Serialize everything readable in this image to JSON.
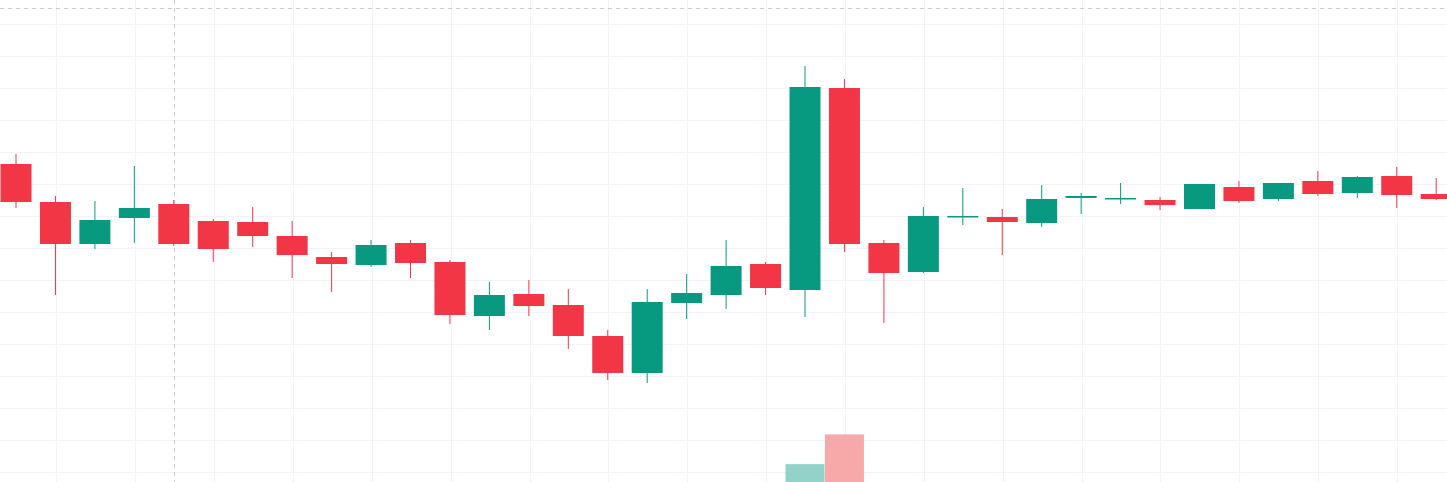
{
  "colors": {
    "up": "#089981",
    "down": "#f23645",
    "volume_up": "#92d2c8",
    "volume_down": "#f7a9a9",
    "grid": "#f0f3fa",
    "crosshair": "#c9ccd3"
  },
  "chart_data": {
    "type": "candlestick",
    "title": "",
    "xlabel": "",
    "ylabel": "",
    "price_range": [
      0,
      482
    ],
    "grid": true,
    "legend": "none",
    "candles": [
      {
        "index": 0,
        "open": 318,
        "high": 328,
        "low": 274,
        "close": 280
      },
      {
        "index": 1,
        "open": 280,
        "high": 286,
        "low": 187,
        "close": 238
      },
      {
        "index": 2,
        "open": 238,
        "high": 281,
        "low": 233,
        "close": 262
      },
      {
        "index": 3,
        "open": 264,
        "high": 316,
        "low": 239,
        "close": 274
      },
      {
        "index": 4,
        "open": 278,
        "high": 282,
        "low": 236,
        "close": 238
      },
      {
        "index": 5,
        "open": 261,
        "high": 263,
        "low": 220,
        "close": 233
      },
      {
        "index": 6,
        "open": 260,
        "high": 275,
        "low": 235,
        "close": 246
      },
      {
        "index": 7,
        "open": 246,
        "high": 261,
        "low": 204,
        "close": 227
      },
      {
        "index": 8,
        "open": 225,
        "high": 230,
        "low": 190,
        "close": 218
      },
      {
        "index": 9,
        "open": 217,
        "high": 242,
        "low": 215,
        "close": 237
      },
      {
        "index": 10,
        "open": 239,
        "high": 242,
        "low": 204,
        "close": 219
      },
      {
        "index": 11,
        "open": 220,
        "high": 222,
        "low": 158,
        "close": 167
      },
      {
        "index": 12,
        "open": 166,
        "high": 200,
        "low": 152,
        "close": 187
      },
      {
        "index": 13,
        "open": 188,
        "high": 202,
        "low": 166,
        "close": 176
      },
      {
        "index": 14,
        "open": 177,
        "high": 193,
        "low": 133,
        "close": 146
      },
      {
        "index": 15,
        "open": 146,
        "high": 152,
        "low": 102,
        "close": 109
      },
      {
        "index": 16,
        "open": 109,
        "high": 193,
        "low": 99,
        "close": 180
      },
      {
        "index": 17,
        "open": 179,
        "high": 208,
        "low": 163,
        "close": 189
      },
      {
        "index": 18,
        "open": 187,
        "high": 242,
        "low": 173,
        "close": 216
      },
      {
        "index": 19,
        "open": 218,
        "high": 220,
        "low": 187,
        "close": 194
      },
      {
        "index": 20,
        "open": 192,
        "high": 416,
        "low": 165,
        "close": 395
      },
      {
        "index": 21,
        "open": 394,
        "high": 403,
        "low": 230,
        "close": 238
      },
      {
        "index": 22,
        "open": 239,
        "high": 242,
        "low": 159,
        "close": 209
      },
      {
        "index": 23,
        "open": 210,
        "high": 275,
        "low": 209,
        "close": 266
      },
      {
        "index": 24,
        "open": 265,
        "high": 294,
        "low": 257,
        "close": 266
      },
      {
        "index": 25,
        "open": 265,
        "high": 273,
        "low": 227,
        "close": 260
      },
      {
        "index": 26,
        "open": 259,
        "high": 297,
        "low": 255,
        "close": 283
      },
      {
        "index": 27,
        "open": 284,
        "high": 289,
        "low": 268,
        "close": 286
      },
      {
        "index": 28,
        "open": 283,
        "high": 299,
        "low": 278,
        "close": 284
      },
      {
        "index": 29,
        "open": 282,
        "high": 285,
        "low": 272,
        "close": 277
      },
      {
        "index": 30,
        "open": 273,
        "high": 298,
        "low": 273,
        "close": 298
      },
      {
        "index": 31,
        "open": 295,
        "high": 301,
        "low": 279,
        "close": 281
      },
      {
        "index": 32,
        "open": 283,
        "high": 299,
        "low": 281,
        "close": 299
      },
      {
        "index": 33,
        "open": 301,
        "high": 311,
        "low": 286,
        "close": 288
      },
      {
        "index": 34,
        "open": 289,
        "high": 306,
        "low": 284,
        "close": 305
      },
      {
        "index": 35,
        "open": 306,
        "high": 315,
        "low": 274,
        "close": 287
      },
      {
        "index": 36,
        "open": 288,
        "high": 304,
        "low": 282,
        "close": 283
      }
    ],
    "volume": [
      {
        "index": 20,
        "value": 18,
        "direction": "up"
      },
      {
        "index": 21,
        "value": 48,
        "direction": "down"
      }
    ]
  }
}
